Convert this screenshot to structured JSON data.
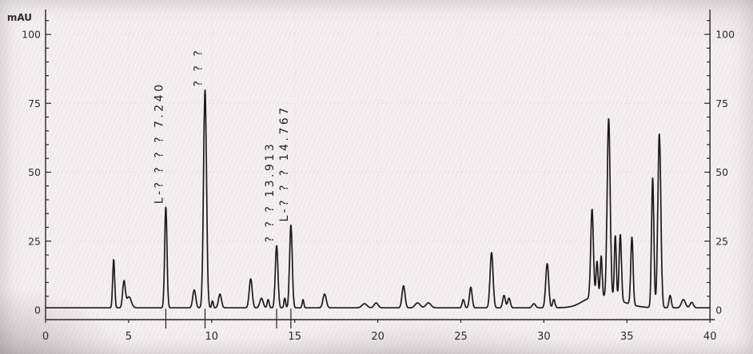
{
  "chart_data": {
    "type": "line",
    "kind": "chromatogram",
    "title": "",
    "xlabel": "",
    "ylabel": "mAU",
    "xlim": [
      0,
      40
    ],
    "ylim": [
      0,
      100
    ],
    "x_ticks": [
      "0",
      "5",
      "10",
      "15",
      "20",
      "25",
      "30",
      "35",
      "40"
    ],
    "y_ticks": [
      "0",
      "25",
      "50",
      "75",
      "100"
    ],
    "y_tick_values": [
      0,
      25,
      50,
      75,
      100
    ],
    "x_tick_values": [
      0,
      5,
      10,
      15,
      20,
      25,
      30,
      35,
      40
    ],
    "y_minor_step": 5,
    "grid": "dotted",
    "legend": "none",
    "colors": {
      "trace": "#1b1b1b",
      "axis": "#222222",
      "grid": "#d6b4c2",
      "text": "#2b2b2b"
    },
    "baseline_mau": 0.8,
    "baseline_humps": [
      {
        "t": 33.8,
        "h": 3.5,
        "s": 1.0
      },
      {
        "t": 32.7,
        "h": 1.5,
        "s": 0.5
      }
    ],
    "peaks": [
      {
        "t": 4.1,
        "h": 17.5,
        "s": 0.06
      },
      {
        "t": 4.72,
        "h": 9.5,
        "s": 0.08
      },
      {
        "t": 5.02,
        "h": 4.0,
        "s": 0.14
      },
      {
        "t": 7.24,
        "h": 36.5,
        "s": 0.07
      },
      {
        "t": 8.95,
        "h": 6.5,
        "s": 0.09
      },
      {
        "t": 9.6,
        "h": 79.0,
        "s": 0.09
      },
      {
        "t": 10.05,
        "h": 2.5,
        "s": 0.05
      },
      {
        "t": 10.5,
        "h": 5.0,
        "s": 0.09
      },
      {
        "t": 12.35,
        "h": 10.5,
        "s": 0.09
      },
      {
        "t": 13.0,
        "h": 3.5,
        "s": 0.1
      },
      {
        "t": 13.4,
        "h": 3.0,
        "s": 0.06
      },
      {
        "t": 13.91,
        "h": 22.5,
        "s": 0.08
      },
      {
        "t": 14.4,
        "h": 3.5,
        "s": 0.05
      },
      {
        "t": 14.77,
        "h": 30.0,
        "s": 0.08
      },
      {
        "t": 15.5,
        "h": 3.0,
        "s": 0.05
      },
      {
        "t": 16.8,
        "h": 5.0,
        "s": 0.1
      },
      {
        "t": 19.2,
        "h": 1.5,
        "s": 0.15
      },
      {
        "t": 19.9,
        "h": 1.8,
        "s": 0.12
      },
      {
        "t": 21.55,
        "h": 8.0,
        "s": 0.09
      },
      {
        "t": 22.4,
        "h": 1.8,
        "s": 0.15
      },
      {
        "t": 23.05,
        "h": 1.8,
        "s": 0.15
      },
      {
        "t": 25.15,
        "h": 3.0,
        "s": 0.07
      },
      {
        "t": 25.6,
        "h": 7.5,
        "s": 0.08
      },
      {
        "t": 26.85,
        "h": 20.0,
        "s": 0.09
      },
      {
        "t": 27.6,
        "h": 4.5,
        "s": 0.08
      },
      {
        "t": 27.9,
        "h": 3.5,
        "s": 0.08
      },
      {
        "t": 29.4,
        "h": 1.5,
        "s": 0.1
      },
      {
        "t": 30.2,
        "h": 16.0,
        "s": 0.09
      },
      {
        "t": 30.6,
        "h": 3.0,
        "s": 0.07
      },
      {
        "t": 32.9,
        "h": 32.0,
        "s": 0.08
      },
      {
        "t": 33.2,
        "h": 13.0,
        "s": 0.06
      },
      {
        "t": 33.45,
        "h": 15.0,
        "s": 0.06
      },
      {
        "t": 33.9,
        "h": 65.0,
        "s": 0.09
      },
      {
        "t": 34.3,
        "h": 23.0,
        "s": 0.06
      },
      {
        "t": 34.6,
        "h": 24.0,
        "s": 0.07
      },
      {
        "t": 35.3,
        "h": 24.5,
        "s": 0.07
      },
      {
        "t": 36.55,
        "h": 47.0,
        "s": 0.07
      },
      {
        "t": 36.95,
        "h": 63.0,
        "s": 0.09
      },
      {
        "t": 37.6,
        "h": 4.5,
        "s": 0.07
      },
      {
        "t": 38.4,
        "h": 3.0,
        "s": 0.12
      },
      {
        "t": 38.9,
        "h": 2.0,
        "s": 0.1
      }
    ],
    "labeled_peaks": [
      {
        "t": 7.24,
        "h": 36.5,
        "label": "L-? ? ? ?  7.240",
        "retention_time": "7.240"
      },
      {
        "t": 9.6,
        "h": 79.0,
        "label": "? ? ?",
        "retention_time": ""
      },
      {
        "t": 13.91,
        "h": 22.5,
        "label": "? ? ?  13.913",
        "retention_time": "13.913"
      },
      {
        "t": 14.77,
        "h": 30.0,
        "label": "L-? ? ?  14.767",
        "retention_time": "14.767"
      }
    ]
  }
}
